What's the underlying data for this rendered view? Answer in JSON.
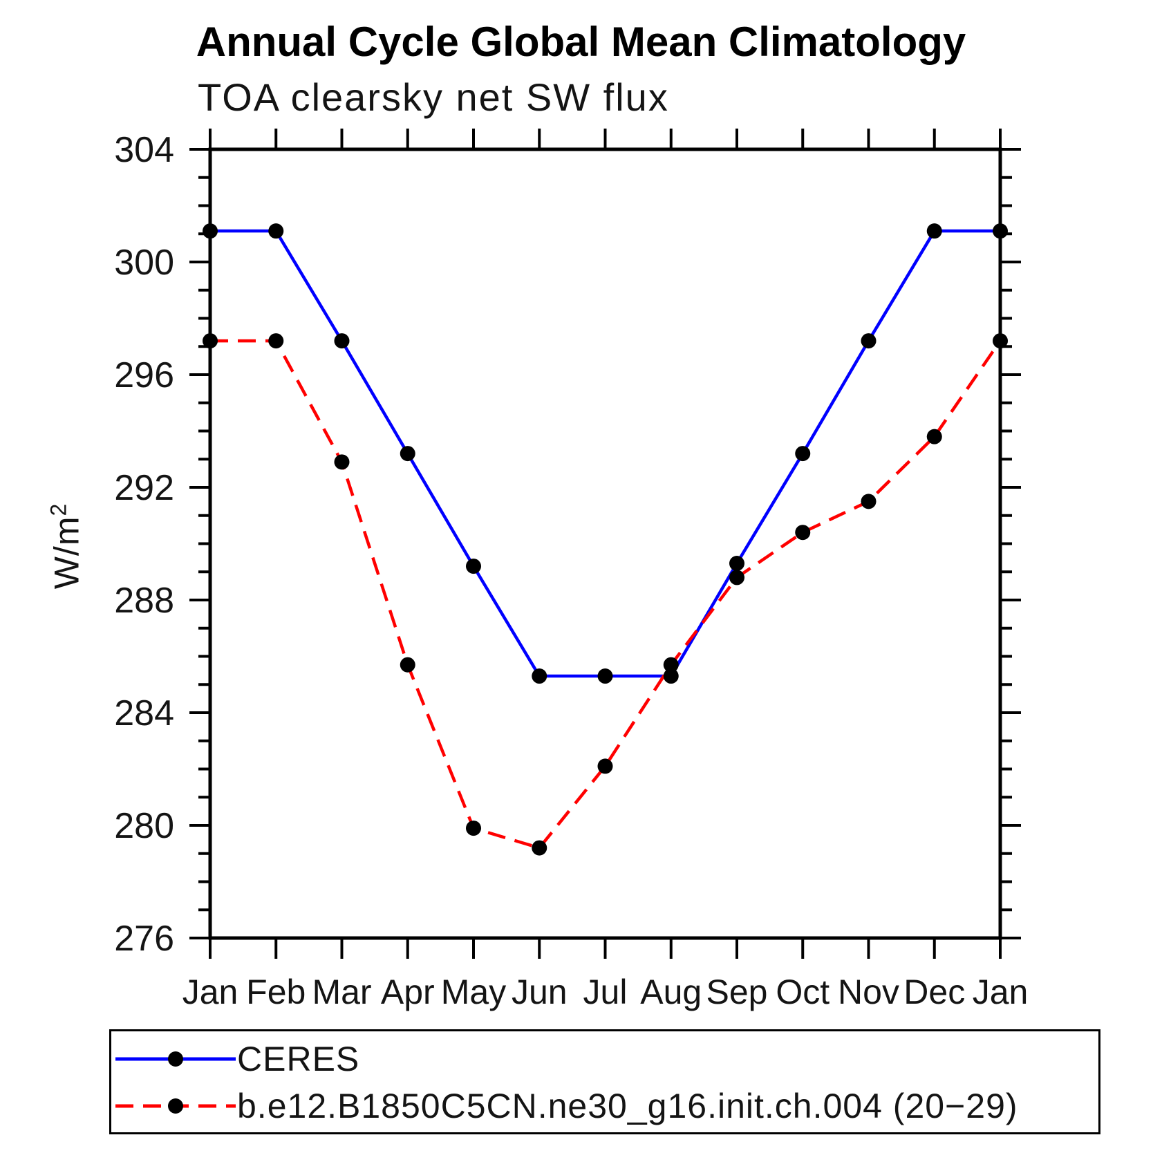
{
  "page": {
    "background": "#ffffff"
  },
  "chart_data": {
    "type": "line",
    "title": "Annual Cycle Global Mean Climatology",
    "subtitle": "TOA clearsky net SW flux",
    "ylabel": "W/m",
    "ylabel_exponent": "2",
    "x_labels": [
      "Jan",
      "Feb",
      "Mar",
      "Apr",
      "May",
      "Jun",
      "Jul",
      "Aug",
      "Sep",
      "Oct",
      "Nov",
      "Dec",
      "Jan"
    ],
    "ylim": [
      276,
      304
    ],
    "y_major_ticks": [
      276,
      280,
      284,
      288,
      292,
      296,
      300,
      304
    ],
    "y_minor_step": 1,
    "grid": false,
    "legend_position": "bottom",
    "axis_color": "#000000",
    "marker_color": "#000000",
    "series": [
      {
        "name": "CERES",
        "color": "#0000ff",
        "style": "solid",
        "marker": "circle",
        "values": [
          301.1,
          301.1,
          297.2,
          293.2,
          289.2,
          285.3,
          285.3,
          285.3,
          289.3,
          293.2,
          297.2,
          301.1,
          301.1
        ]
      },
      {
        "name": "b.e12.B1850C5CN.ne30_g16.init.ch.004 (20−29)",
        "color": "#ff0000",
        "style": "dashed",
        "marker": "circle",
        "values": [
          297.2,
          297.2,
          292.9,
          285.7,
          279.9,
          279.2,
          282.1,
          285.7,
          288.8,
          290.4,
          291.5,
          293.8,
          297.2
        ]
      }
    ]
  }
}
